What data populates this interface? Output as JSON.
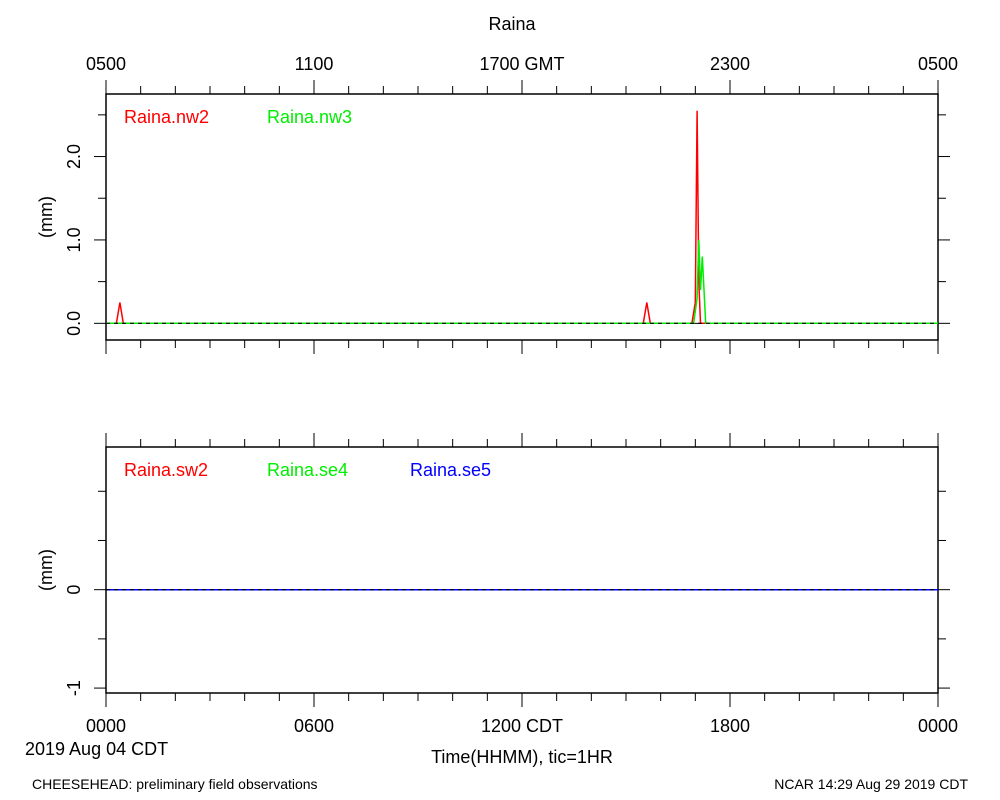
{
  "title": "Raina",
  "top_axis_ticks": [
    "0500",
    "1100",
    "1700 GMT",
    "2300",
    "0500"
  ],
  "bottom_axis_ticks": [
    "0000",
    "0600",
    "1200 CDT",
    "1800",
    "0000"
  ],
  "date_label": "2019 Aug 04 CDT",
  "xlabel": "Time(HHMM), tic=1HR",
  "footer_left": "CHEESEHEAD: preliminary field observations",
  "footer_right": "NCAR 14:29 Aug 29 2019 CDT",
  "colors": {
    "red": "#ff0000",
    "green": "#00ee00",
    "blue": "#0000ff",
    "axis": "#000000",
    "zero_line": "#000000"
  },
  "chart_data": [
    {
      "type": "line",
      "ylabel": "(mm)",
      "ylim": [
        -0.2,
        2.75
      ],
      "yticks": [
        0.0,
        1.0,
        2.0
      ],
      "ytick_labels": [
        "0.0",
        "1.0",
        "2.0"
      ],
      "xlim_hours": [
        0,
        24
      ],
      "series": [
        {
          "name": "Raina.nw2",
          "color": "#ff0000",
          "x": [
            0,
            0.3,
            0.4,
            0.5,
            15.5,
            15.6,
            15.7,
            16.9,
            17.0,
            17.05,
            17.1,
            17.15,
            24
          ],
          "y": [
            0,
            0,
            0.25,
            0,
            0,
            0.25,
            0,
            0,
            0.25,
            2.55,
            0.5,
            0,
            0
          ]
        },
        {
          "name": "Raina.nw3",
          "color": "#00ee00",
          "x": [
            0,
            16.95,
            17.05,
            17.1,
            17.15,
            17.2,
            17.3,
            24
          ],
          "y": [
            0,
            0,
            0.3,
            1.0,
            0.4,
            0.8,
            0,
            0
          ]
        }
      ]
    },
    {
      "type": "line",
      "ylabel": "(mm)",
      "ylim": [
        -1.05,
        1.45
      ],
      "yticks": [
        -1,
        0
      ],
      "ytick_labels": [
        "-1",
        "0"
      ],
      "xlim_hours": [
        0,
        24
      ],
      "series": [
        {
          "name": "Raina.sw2",
          "color": "#ff0000",
          "x": [
            0,
            24
          ],
          "y": [
            0,
            0
          ]
        },
        {
          "name": "Raina.se4",
          "color": "#00ee00",
          "x": [
            0,
            24
          ],
          "y": [
            0,
            0
          ]
        },
        {
          "name": "Raina.se5",
          "color": "#0000ff",
          "x": [
            0,
            24
          ],
          "y": [
            0,
            0
          ]
        }
      ]
    }
  ]
}
